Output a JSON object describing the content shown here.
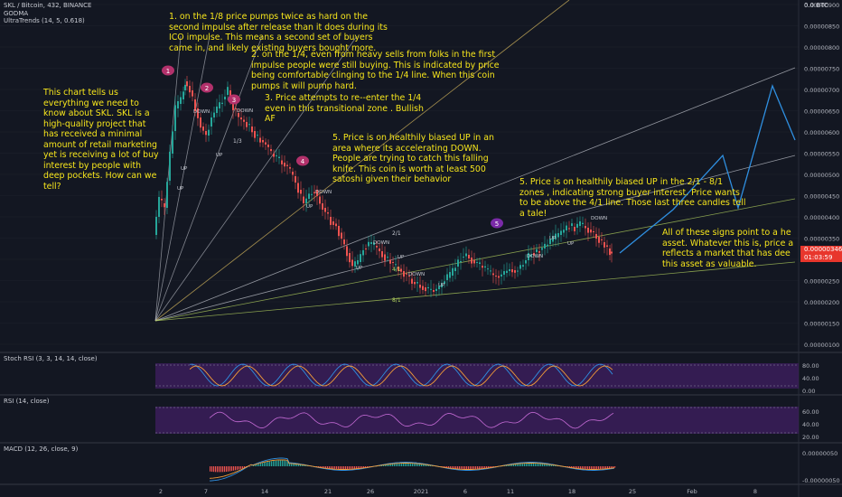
{
  "header": {
    "symbol_line": "SKL / Bitcoin, 432, BINANCE",
    "indicator_1": "GODMA",
    "indicator_2": "UltraTrends (14, 5, 0.618)",
    "btc_label": "0.0 BTC"
  },
  "price_axis": {
    "ticks": [
      "0.00000900",
      "0.00000850",
      "0.00000800",
      "0.00000750",
      "0.00000700",
      "0.00000650",
      "0.00000600",
      "0.00000550",
      "0.00000500",
      "0.00000450",
      "0.00000400",
      "0.00000350",
      "0.00000300",
      "0.00000250",
      "0.00000200",
      "0.00000150",
      "0.00000100"
    ],
    "current_price": "0.00000346",
    "countdown": "01:03:59"
  },
  "time_axis": {
    "ticks": [
      "2",
      "7",
      "14",
      "21",
      "26",
      "2021",
      "6",
      "11",
      "18",
      "25",
      "Feb",
      "8"
    ]
  },
  "annotations": {
    "note_left": "This chart tells us everything we need to know about SKL. SKL is a high-quality project that has received a minimal amount of retail marketing yet is receiving a lot of buy interest by people with deep pockets. How can we tell?",
    "note_1": "1. on the 1/8 price pumps twice as hard on the second impulse after release than it does during its ICO impulse. This means a second set of buyers came in, and likely existing buyers bought more.",
    "note_2": "2. on the 1/4, even from heavy sells from folks in the first impulse people were still buying. This is indicated by price being comfortable clinging to the 1/4 line. When this coin pumps it will pump hard.",
    "note_3": "3. Price attempts to re--enter the 1/4 even in this transitional zone . Bullish AF",
    "note_4": "5. Price is on healthily biased UP in an area where its accelerating DOWN. People are trying to catch this falling knife. This coin is worth at least 500 satoshi given their behavior",
    "note_5": "5. Price is on healthily biased UP in the 2/1 - 8/1 zones , indicating strong buyer interest. Price wants to be above the 4/1 line. Those last three candles tell a tale!",
    "note_right": "All of these signs point to a he asset. Whatever this is, price a reflects a market that has dee this asset as valuable."
  },
  "markers": [
    "1",
    "2",
    "3",
    "4",
    "5"
  ],
  "fan_labels": [
    "1/3",
    "2/1",
    "4/1",
    "8/1"
  ],
  "candle_labels": [
    "UP",
    "DOWN"
  ],
  "stoch": {
    "label": "Stoch RSI (3, 3, 14, 14, close)",
    "ticks": [
      "80.00",
      "40.00",
      "0.00"
    ]
  },
  "rsi": {
    "label": "RSI (14, close)",
    "ticks": [
      "60.00",
      "40.00",
      "20.00"
    ]
  },
  "macd": {
    "label": "MACD (12, 26, close, 9)",
    "ticks": [
      "0.00000050",
      "-0.00000050"
    ]
  },
  "colors": {
    "background": "#131722",
    "annotation": "#f6e51c",
    "up_candle": "#26a69a",
    "down_candle": "#ef5350",
    "fan_line": "#c9ccd4",
    "projection": "#2f8fe0",
    "marker": "#b2316b",
    "oscillator_band": "#3b1d5a",
    "price_tag": "#e8362c"
  }
}
